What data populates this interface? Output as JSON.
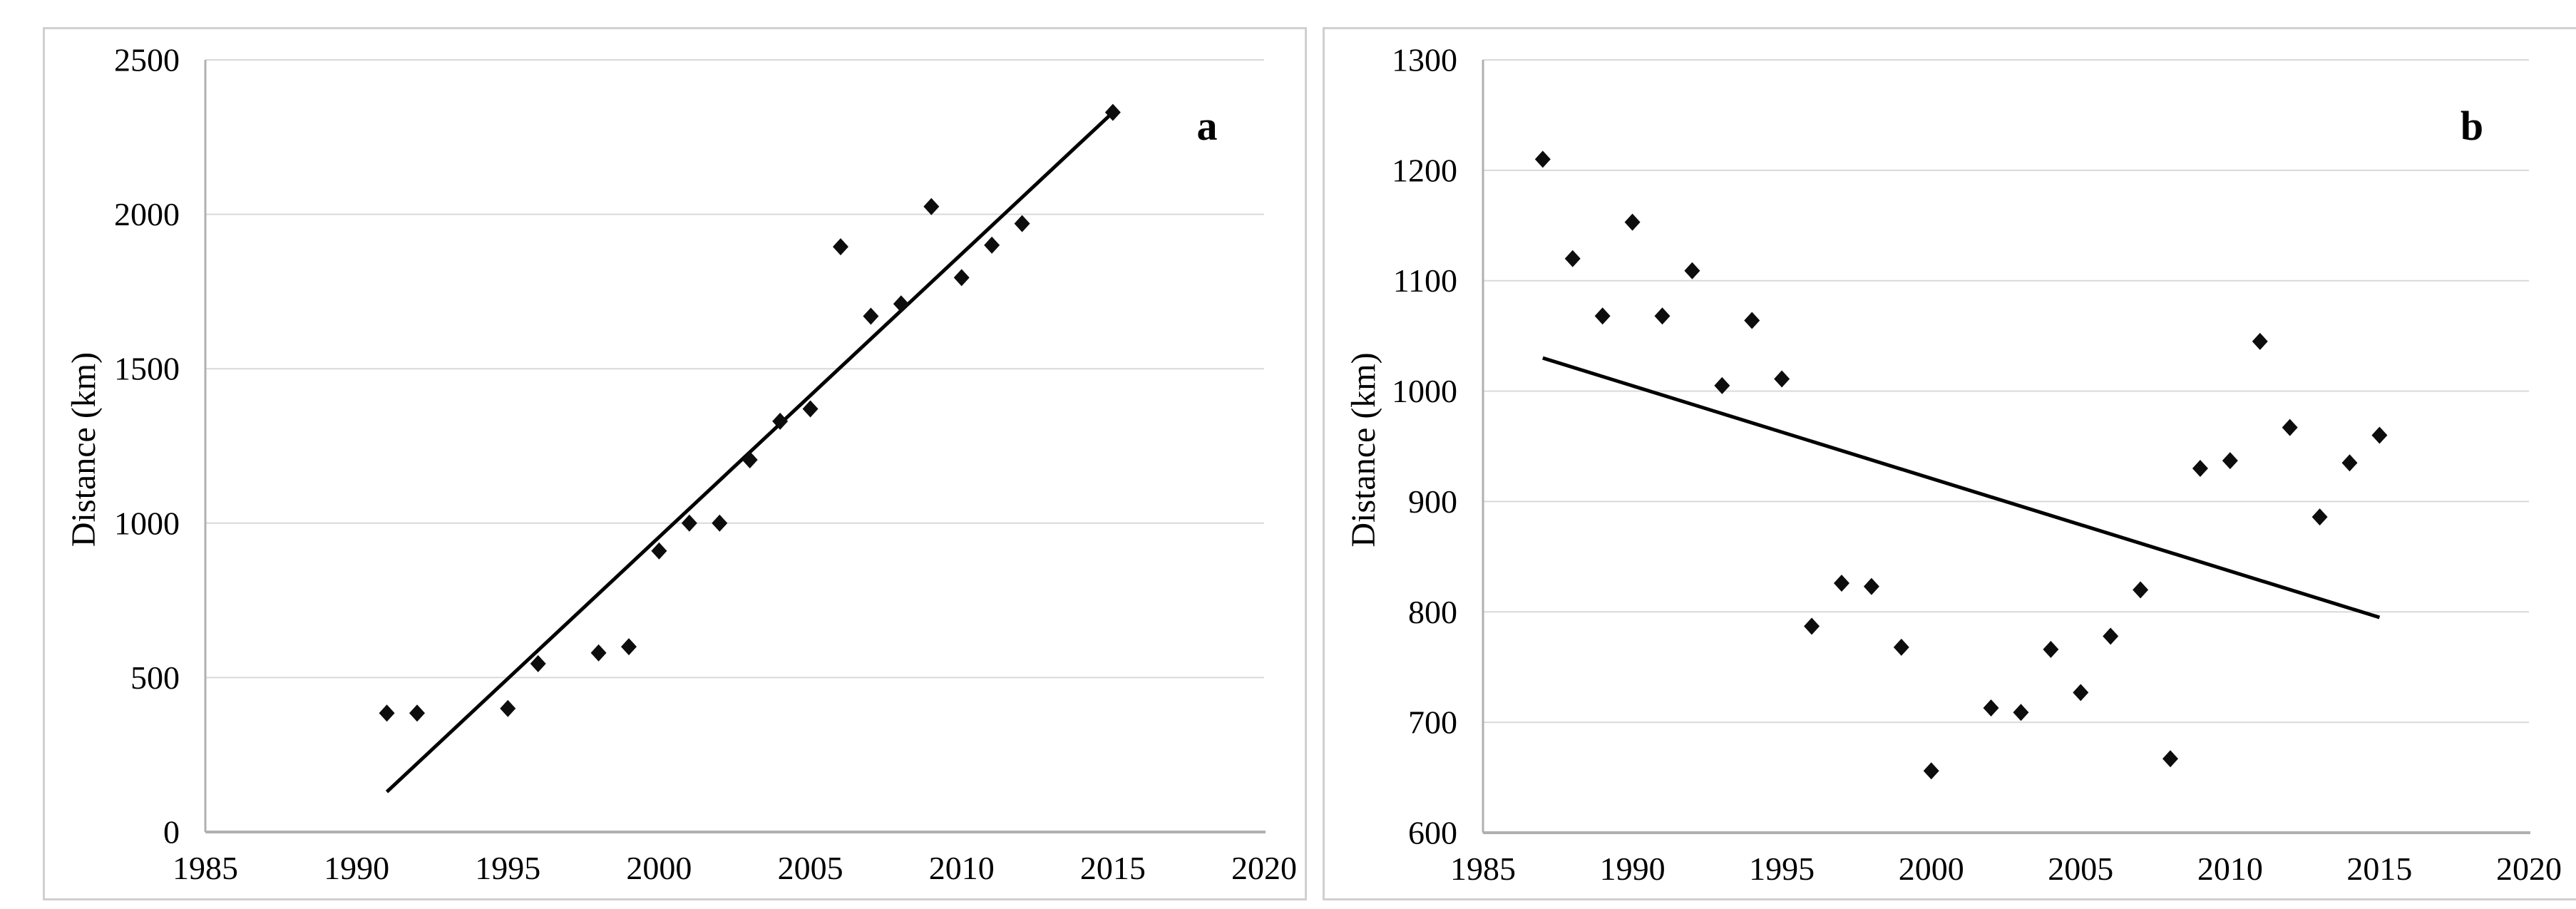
{
  "figure": {
    "description": "Two-panel scatter figure with linear trendlines",
    "ylabel": "Distance (km)"
  },
  "styles": {
    "marker_color": "#0d0d0d",
    "trendline_color": "#000000",
    "gridline_color": "#d9d9d9",
    "axis_color": "#b0b0b0",
    "border_color": "#d0d0d0",
    "text_color": "#000000"
  },
  "chart_data": [
    {
      "panel_label": "a",
      "type": "scatter",
      "title": "",
      "xlabel": "",
      "ylabel": "Distance (km)",
      "xlim": [
        1985,
        2020
      ],
      "ylim": [
        0,
        2500
      ],
      "xticks": [
        1985,
        1990,
        1995,
        2000,
        2005,
        2010,
        2015,
        2020
      ],
      "yticks": [
        0,
        500,
        1000,
        1500,
        2000,
        2500
      ],
      "grid": "horizontal",
      "legend": "none",
      "marker": "diamond",
      "x": [
        1991,
        1992,
        1995,
        1996,
        1998,
        1999,
        2000,
        2001,
        2002,
        2003,
        2004,
        2005,
        2006,
        2007,
        2008,
        2009,
        2010,
        2011,
        2012,
        2015
      ],
      "y": [
        385,
        385,
        400,
        545,
        580,
        600,
        910,
        1000,
        1000,
        1205,
        1330,
        1370,
        1895,
        1670,
        1710,
        2025,
        1795,
        1900,
        1970,
        2330
      ],
      "trendline": {
        "x": [
          1991,
          2015
        ],
        "y": [
          130,
          2330
        ]
      }
    },
    {
      "panel_label": "b",
      "type": "scatter",
      "title": "",
      "xlabel": "",
      "ylabel": "Distance (km)",
      "xlim": [
        1985,
        2020
      ],
      "ylim": [
        600,
        1300
      ],
      "xticks": [
        1985,
        1990,
        1995,
        2000,
        2005,
        2010,
        2015,
        2020
      ],
      "yticks": [
        600,
        700,
        800,
        900,
        1000,
        1100,
        1200,
        1300
      ],
      "grid": "horizontal",
      "legend": "none",
      "marker": "diamond",
      "x": [
        1987,
        1988,
        1989,
        1990,
        1991,
        1992,
        1993,
        1994,
        1995,
        1996,
        1997,
        1998,
        1999,
        2000,
        2002,
        2003,
        2004,
        2005,
        2006,
        2007,
        2008,
        2009,
        2010,
        2011,
        2012,
        2013,
        2014,
        2015
      ],
      "y": [
        1210,
        1120,
        1068,
        1153,
        1068,
        1109,
        1005,
        1064,
        1011,
        787,
        826,
        823,
        768,
        656,
        713,
        709,
        766,
        727,
        778,
        820,
        667,
        930,
        937,
        1045,
        967,
        886,
        935,
        960
      ],
      "trendline": {
        "x": [
          1987,
          2015
        ],
        "y": [
          1030,
          795
        ]
      }
    }
  ]
}
